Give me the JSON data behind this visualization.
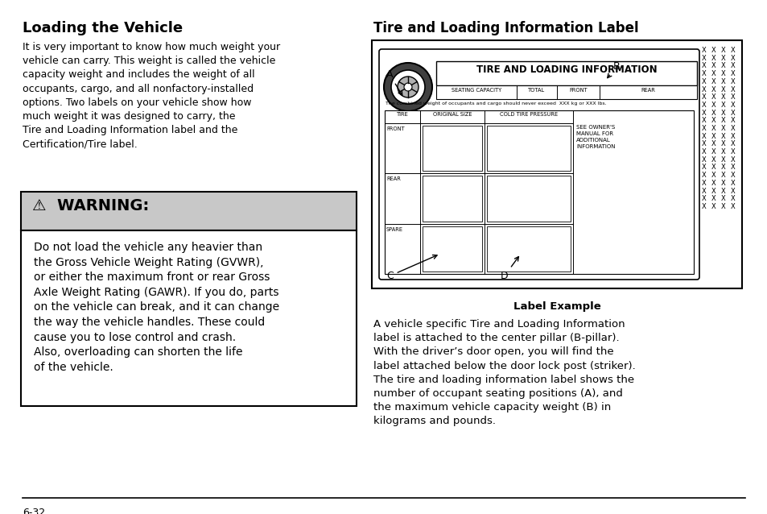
{
  "bg_color": "#ffffff",
  "page_width": 9.54,
  "page_height": 6.38,
  "left_title": "Loading the Vehicle",
  "left_para1": "It is very important to know how much weight your\nvehicle can carry. This weight is called the vehicle\ncapacity weight and includes the weight of all\noccupants, cargo, and all nonfactory-installed\noptions. Two labels on your vehicle show how\nmuch weight it was designed to carry, the\nTire and Loading Information label and the\nCertification/Tire label.",
  "warning_header": "⚠  WARNING:",
  "warning_body": "Do not load the vehicle any heavier than\nthe Gross Vehicle Weight Rating (GVWR),\nor either the maximum front or rear Gross\nAxle Weight Rating (GAWR). If you do, parts\non the vehicle can break, and it can change\nthe way the vehicle handles. These could\ncause you to lose control and crash.\nAlso, overloading can shorten the life\nof the vehicle.",
  "right_title": "Tire and Loading Information Label",
  "label_example_caption": "Label Example",
  "right_para": "A vehicle specific Tire and Loading Information\nlabel is attached to the center pillar (B-pillar).\nWith the driver’s door open, you will find the\nlabel attached below the door lock post (striker).\nThe tire and loading information label shows the\nnumber of occupant seating positions (A), and\nthe maximum vehicle capacity weight (B) in\nkilograms and pounds.",
  "page_num": "6-32",
  "warning_header_bg": "#c8c8c8",
  "text_color": "#000000"
}
